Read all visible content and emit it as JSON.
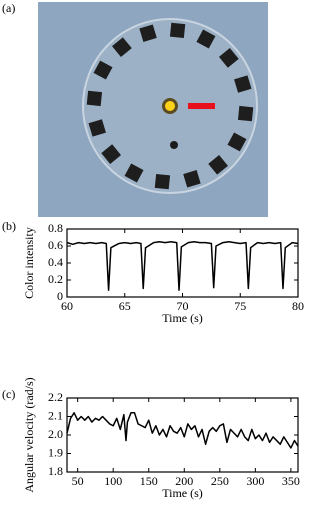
{
  "image_panel": {
    "label": "(a)"
  },
  "chart_data": [
    {
      "type": "line",
      "panel": "(b)",
      "xlabel": "Time (s)",
      "ylabel": "Color intensity",
      "color": "#000000",
      "x": [
        60,
        60.5,
        61,
        61.5,
        62,
        62.5,
        63,
        63.4,
        63.6,
        63.8,
        64.5,
        65,
        65.5,
        66,
        66.4,
        66.6,
        66.8,
        67.5,
        68,
        68.5,
        69,
        69.5,
        69.7,
        69.9,
        70.5,
        71,
        71.5,
        72,
        72.5,
        72.7,
        72.9,
        73.5,
        74,
        74.5,
        75,
        75.5,
        75.7,
        75.9,
        76.5,
        77,
        77.5,
        78,
        78.5,
        78.7,
        78.9,
        79.5,
        80
      ],
      "values": [
        0.64,
        0.62,
        0.64,
        0.63,
        0.64,
        0.63,
        0.64,
        0.63,
        0.08,
        0.58,
        0.63,
        0.64,
        0.63,
        0.64,
        0.63,
        0.1,
        0.58,
        0.64,
        0.65,
        0.64,
        0.65,
        0.64,
        0.08,
        0.59,
        0.64,
        0.65,
        0.64,
        0.64,
        0.63,
        0.11,
        0.6,
        0.64,
        0.65,
        0.64,
        0.63,
        0.64,
        0.1,
        0.58,
        0.64,
        0.63,
        0.64,
        0.63,
        0.64,
        0.1,
        0.58,
        0.64,
        0.63
      ],
      "xlim": [
        60,
        80
      ],
      "xticks": [
        60,
        65,
        70,
        75,
        80
      ],
      "ylim": [
        0,
        0.8
      ],
      "yticks": [
        0,
        0.2,
        0.4,
        0.6,
        0.8
      ]
    },
    {
      "type": "line",
      "panel": "(c)",
      "xlabel": "Time (s)",
      "ylabel": "Angular velocity (rad/s)",
      "color": "#000000",
      "x": [
        35,
        40,
        45,
        50,
        55,
        60,
        65,
        70,
        75,
        80,
        85,
        90,
        95,
        100,
        105,
        110,
        115,
        118,
        120,
        125,
        130,
        135,
        140,
        145,
        150,
        155,
        160,
        165,
        170,
        175,
        180,
        185,
        190,
        195,
        200,
        205,
        210,
        215,
        220,
        225,
        230,
        235,
        240,
        245,
        250,
        255,
        260,
        265,
        270,
        275,
        280,
        285,
        290,
        295,
        300,
        305,
        310,
        315,
        320,
        325,
        330,
        335,
        340,
        345,
        350,
        355,
        360
      ],
      "values": [
        2.01,
        2.09,
        2.12,
        2.08,
        2.1,
        2.08,
        2.1,
        2.07,
        2.09,
        2.08,
        2.1,
        2.08,
        2.06,
        2.05,
        2.09,
        2.03,
        2.11,
        1.97,
        2.07,
        2.12,
        2.12,
        2.06,
        2.05,
        2.04,
        2.08,
        2.01,
        2.05,
        2.0,
        2.03,
        1.99,
        2.05,
        2.02,
        2.01,
        2.04,
        1.99,
        2.06,
        2.03,
        2.05,
        1.99,
        2.03,
        1.95,
        2.02,
        2.04,
        2.02,
        2.05,
        2.06,
        1.96,
        2.03,
        2.01,
        1.99,
        2.03,
        1.99,
        1.97,
        2.03,
        1.98,
        2.0,
        1.97,
        2.01,
        1.96,
        1.99,
        1.97,
        1.95,
        1.99,
        1.96,
        1.93,
        1.97,
        1.94
      ],
      "xlim": [
        35,
        360
      ],
      "xticks": [
        50,
        100,
        150,
        200,
        250,
        300,
        350
      ],
      "ylim": [
        1.8,
        2.2
      ],
      "yticks": [
        1.8,
        1.9,
        {
          "value": 2.0,
          "label": "2.0"
        },
        2.1,
        2.2
      ]
    }
  ]
}
